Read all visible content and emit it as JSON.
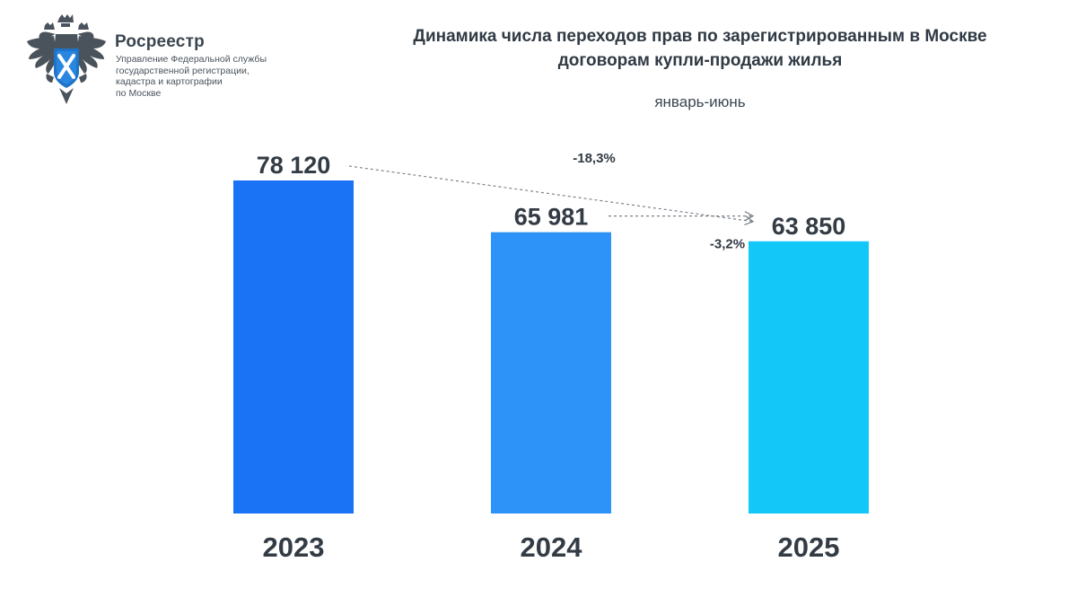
{
  "logo": {
    "name": "Росреестр",
    "subtitle_lines": [
      "Управление Федеральной службы",
      "государственной регистрации,",
      "кадастра и картографии",
      "по Москве"
    ]
  },
  "title_lines": [
    "Динамика числа переходов прав по зарегистрированным в Москве",
    "договорам купли-продажи жилья"
  ],
  "subtitle": "январь-июнь",
  "chart_data": {
    "type": "bar",
    "categories": [
      "2023",
      "2024",
      "2025"
    ],
    "values": [
      78120,
      65981,
      63850
    ],
    "value_labels": [
      "78 120",
      "65 981",
      "63 850"
    ],
    "colors": [
      "#1a73f5",
      "#2d93f8",
      "#13c8f8"
    ],
    "title": "Динамика числа переходов прав по зарегистрированным в Москве договорам купли-продажи жилья",
    "subtitle": "январь-июнь",
    "xlabel": "",
    "ylabel": "",
    "ylim": [
      0,
      78120
    ],
    "grid": false,
    "annotations": [
      {
        "text": "-18,3%",
        "from": "2023",
        "to": "2025"
      },
      {
        "text": "-3,2%",
        "from": "2024",
        "to": "2025"
      }
    ]
  }
}
